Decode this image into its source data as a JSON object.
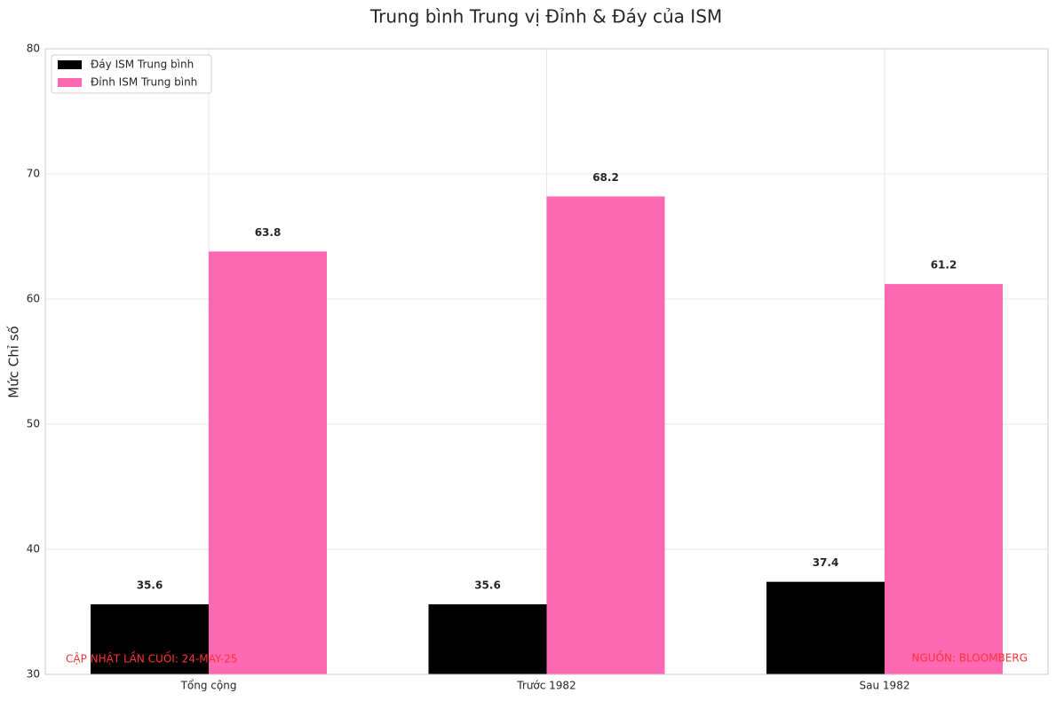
{
  "chart_data": {
    "type": "bar",
    "title": "Trung bình Trung vị Đỉnh & Đáy của ISM",
    "y_label": "Mức Chỉ số",
    "categories": [
      "Tổng cộng",
      "Trước 1982",
      "Sau 1982"
    ],
    "series": [
      {
        "name": "Đáy ISM Trung bình",
        "color": "#000000",
        "values": [
          35.6,
          35.6,
          37.4
        ]
      },
      {
        "name": "Đỉnh ISM Trung bình",
        "color": "#ff69b4",
        "values": [
          63.8,
          68.2,
          61.2
        ]
      }
    ],
    "ylim": [
      30,
      80
    ],
    "yticks": [
      30,
      40,
      50,
      60,
      70,
      80
    ],
    "grid": true,
    "legend": "upper left",
    "annotations": [
      "CẬP NHẬT LẦN CUỐI: 24-MAY-25",
      "NGUỒN: BLOOMBERG"
    ],
    "annotation_color": "#ff3333"
  }
}
